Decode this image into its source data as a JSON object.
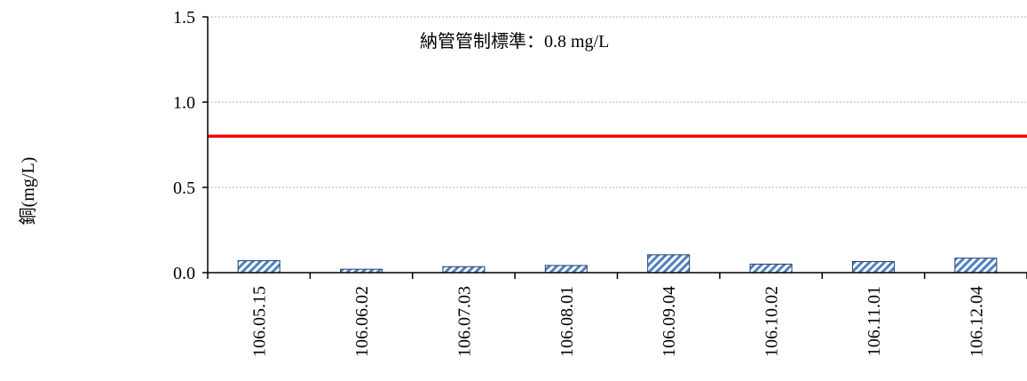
{
  "chart_data": {
    "type": "bar",
    "ylabel": "銅(mg/L)",
    "xlabel": "",
    "categories": [
      "106.05.15",
      "106.06.02",
      "106.07.03",
      "106.08.01",
      "106.09.04",
      "106.10.02",
      "106.11.01",
      "106.12.04"
    ],
    "values": [
      0.07,
      0.02,
      0.035,
      0.042,
      0.105,
      0.05,
      0.065,
      0.085
    ],
    "ylim": [
      0,
      1.5
    ],
    "yticks": [
      "0.0",
      "0.5",
      "1.0",
      "1.5"
    ],
    "ytick_values": [
      0,
      0.5,
      1.0,
      1.5
    ],
    "grid": true,
    "bar_fill": "hatched-diagonal",
    "bar_color": "#4f81bd",
    "reference_line": {
      "value": 0.8,
      "color": "#ff0000"
    },
    "annotation": "納管管制標準：0.8 mg/L"
  }
}
